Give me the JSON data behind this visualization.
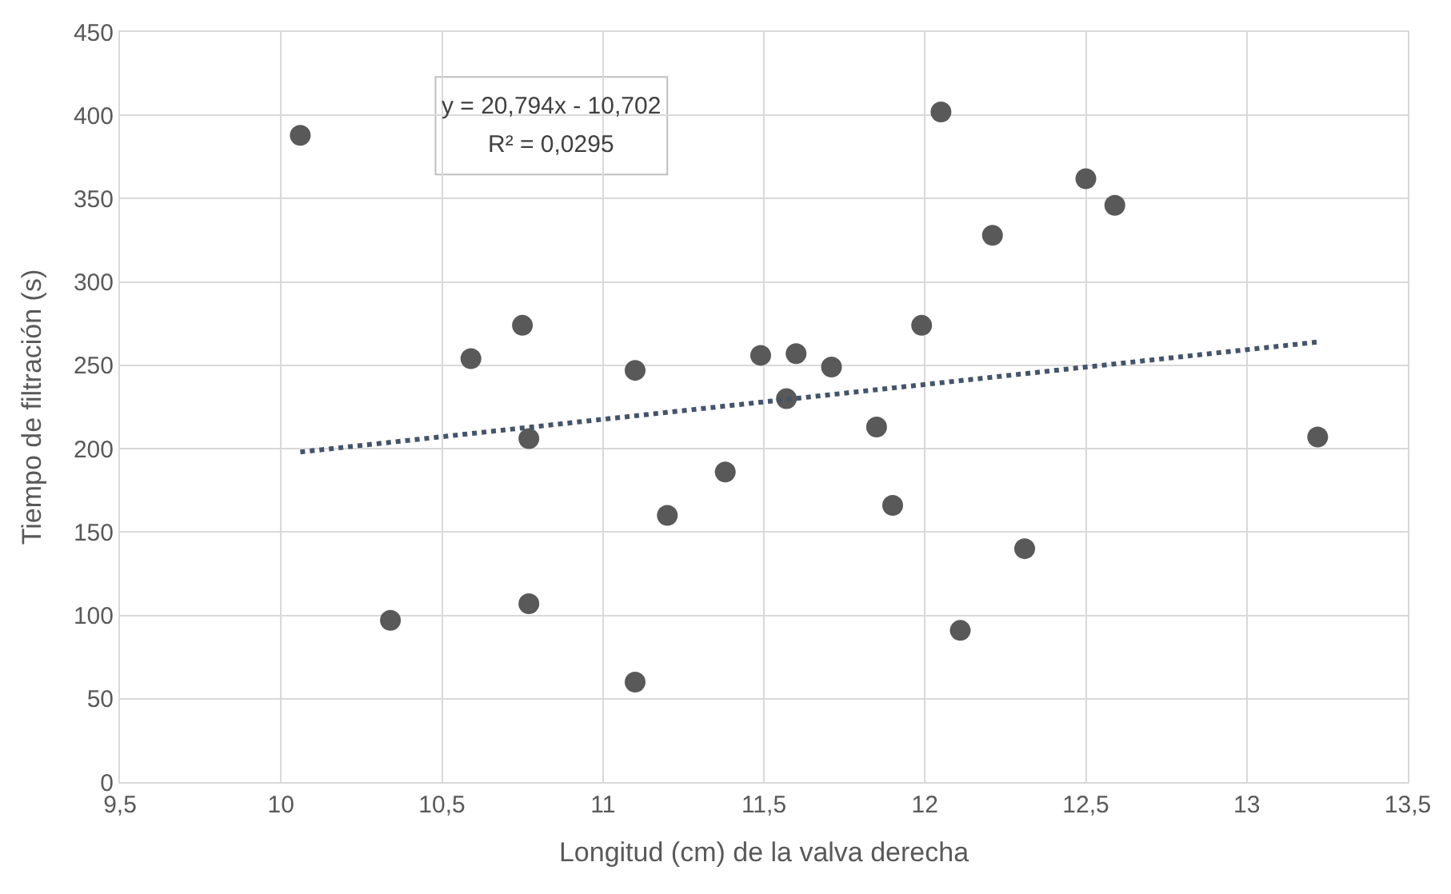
{
  "chart_data": {
    "type": "scatter",
    "xlabel": "Longitud (cm) de la valva derecha",
    "ylabel": "Tiempo de filtración (s)",
    "series": [
      {
        "color": "#595959",
        "marker": "circle",
        "x": [
          10.06,
          10.34,
          10.59,
          10.75,
          10.77,
          10.77,
          11.1,
          11.1,
          11.2,
          11.38,
          11.49,
          11.6,
          11.57,
          11.71,
          11.85,
          11.9,
          11.99,
          12.05,
          12.11,
          12.21,
          12.31,
          12.5,
          12.59,
          13.22
        ],
        "values": [
          388,
          97,
          254,
          274,
          206,
          107,
          247,
          60,
          160,
          186,
          256,
          257,
          230,
          249,
          213,
          166,
          274,
          402,
          91,
          328,
          140,
          362,
          346,
          207
        ]
      },
      {
        "type": "line",
        "color": "#44546a",
        "line_style": "dotted",
        "x": [
          10.06,
          13.22
        ],
        "values": [
          198,
          264
        ]
      }
    ],
    "annotations": [
      "y = 20,794x - 10,702",
      "R² = 0,0295"
    ],
    "xlim": [
      9.5,
      13.5
    ],
    "xticks": [
      {
        "value": 9.5,
        "label": "9,5"
      },
      10,
      {
        "value": 10.5,
        "label": "10,5"
      },
      11,
      {
        "value": 11.5,
        "label": "11,5"
      },
      12,
      {
        "value": 12.5,
        "label": "12,5"
      },
      13,
      {
        "value": 13.5,
        "label": "13,5"
      }
    ],
    "ylim": [
      0,
      450
    ],
    "yticks": [
      0,
      50,
      100,
      150,
      200,
      250,
      300,
      350,
      400,
      450
    ],
    "grid": true
  }
}
